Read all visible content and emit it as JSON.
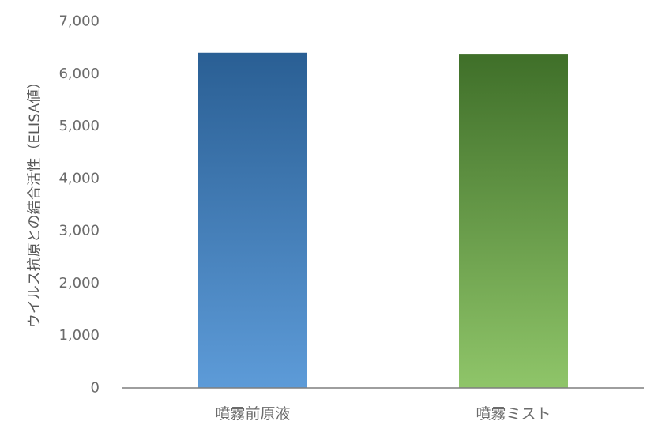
{
  "chart_data": {
    "type": "bar",
    "title": "",
    "xlabel": "",
    "ylabel": "ウイルス抗原との結合活性（ELISA値）",
    "categories": [
      "噴霧前原液",
      "噴霧ミスト"
    ],
    "series": [
      {
        "values": [
          6400,
          6380
        ]
      }
    ],
    "ylim": [
      0,
      7000
    ],
    "yticks": [
      0,
      1000,
      2000,
      3000,
      4000,
      5000,
      6000,
      7000
    ],
    "ytick_labels": [
      "0",
      "1,000",
      "2,000",
      "3,000",
      "4,000",
      "5,000",
      "6,000",
      "7,000"
    ],
    "grid": false,
    "legend": "none",
    "colors": {
      "bar_1_top": "#2a5f94",
      "bar_1_bottom": "#5d9bd8",
      "bar_2_top": "#3f6f29",
      "bar_2_bottom": "#8fc569",
      "axis": "#7f7f7f",
      "text": "#6b6b6b"
    }
  }
}
